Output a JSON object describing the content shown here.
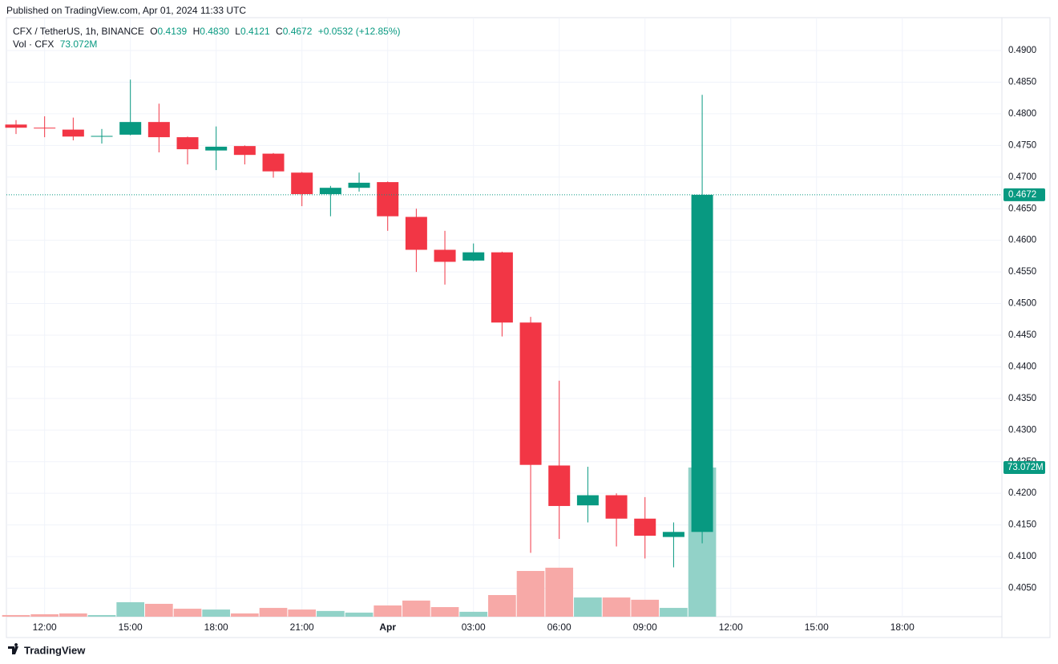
{
  "header": {
    "published": "Published on TradingView.com, Apr 01, 2024 11:33 UTC",
    "brand": "TradingView"
  },
  "chart_data": {
    "type": "candlestick",
    "symbol": "CFX / TetherUS, 1h, BINANCE",
    "legend": {
      "o_label": "O",
      "open": "0.4139",
      "h_label": "H",
      "high": "0.4830",
      "l_label": "L",
      "low": "0.4121",
      "c_label": "C",
      "close": "0.4672",
      "change": "+0.0532 (+12.85%)"
    },
    "volume_legend": {
      "name": "Vol · CFX",
      "value": "73.072M"
    },
    "categories": [
      null,
      "12:00",
      null,
      null,
      "15:00",
      null,
      null,
      "18:00",
      null,
      null,
      "21:00",
      null,
      null,
      "Apr",
      null,
      null,
      "03:00",
      null,
      null,
      "06:00",
      null,
      null,
      "09:00",
      null,
      null,
      "12:00",
      null,
      null,
      "15:00",
      null,
      null,
      "18:00",
      null,
      null,
      null
    ],
    "open": [
      0.4783,
      0.4778,
      0.4775,
      0.4764,
      0.4767,
      0.4787,
      0.4763,
      0.4742,
      0.4749,
      0.4737,
      0.4707,
      0.4673,
      0.4683,
      0.4692,
      0.4637,
      0.4585,
      0.4568,
      0.4581,
      0.447,
      0.4244,
      0.4181,
      0.4197,
      0.416,
      0.4131,
      0.4139,
      null,
      null,
      null,
      null,
      null,
      null,
      null,
      null,
      null,
      null
    ],
    "high": [
      0.479,
      0.4796,
      0.4794,
      0.4776,
      0.4854,
      0.4816,
      0.4764,
      0.478,
      0.475,
      0.4738,
      0.4708,
      0.4686,
      0.4707,
      0.4693,
      0.465,
      0.4615,
      0.4595,
      0.4582,
      0.4479,
      0.4378,
      0.4242,
      0.42,
      0.4194,
      0.4154,
      0.483,
      null,
      null,
      null,
      null,
      null,
      null,
      null,
      null,
      null,
      null
    ],
    "low": [
      0.4768,
      0.4763,
      0.4758,
      0.4753,
      0.4766,
      0.4739,
      0.472,
      0.4711,
      0.472,
      0.4699,
      0.4654,
      0.4638,
      0.4677,
      0.4615,
      0.455,
      0.453,
      0.4567,
      0.4448,
      0.4106,
      0.4128,
      0.4154,
      0.4116,
      0.4097,
      0.4083,
      0.4121,
      null,
      null,
      null,
      null,
      null,
      null,
      null,
      null,
      null,
      null
    ],
    "close": [
      0.4778,
      0.4777,
      0.4764,
      0.4765,
      0.4787,
      0.4763,
      0.4744,
      0.4748,
      0.4735,
      0.4709,
      0.4673,
      0.4683,
      0.4691,
      0.4638,
      0.4585,
      0.4566,
      0.4581,
      0.447,
      0.4245,
      0.418,
      0.4197,
      0.416,
      0.4133,
      0.4139,
      0.4672,
      null,
      null,
      null,
      null,
      null,
      null,
      null,
      null,
      null,
      null
    ],
    "volume": [
      0.8,
      1.2,
      1.6,
      0.8,
      7.1,
      6.3,
      3.9,
      3.5,
      1.6,
      4.3,
      3.5,
      2.8,
      2.0,
      5.5,
      7.9,
      4.7,
      2.4,
      10.6,
      22.4,
      24.0,
      9.4,
      9.4,
      8.3,
      4.3,
      73.072,
      null,
      null,
      null,
      null,
      null,
      null,
      null,
      null,
      null,
      null
    ],
    "ylim": [
      0.4005,
      0.4952
    ],
    "yticks": [
      {
        "value": 0.405,
        "label": "0.4050"
      },
      {
        "value": 0.41,
        "label": "0.4100"
      },
      {
        "value": 0.415,
        "label": "0.4150"
      },
      {
        "value": 0.42,
        "label": "0.4200"
      },
      {
        "value": 0.425,
        "label": "0.4250"
      },
      {
        "value": 0.43,
        "label": "0.4300"
      },
      {
        "value": 0.435,
        "label": "0.4350"
      },
      {
        "value": 0.44,
        "label": "0.4400"
      },
      {
        "value": 0.445,
        "label": "0.4450"
      },
      {
        "value": 0.45,
        "label": "0.4500"
      },
      {
        "value": 0.455,
        "label": "0.4550"
      },
      {
        "value": 0.46,
        "label": "0.4600"
      },
      {
        "value": 0.465,
        "label": "0.4650"
      },
      {
        "value": 0.47,
        "label": "0.4700"
      },
      {
        "value": 0.475,
        "label": "0.4750"
      },
      {
        "value": 0.48,
        "label": "0.4800"
      },
      {
        "value": 0.485,
        "label": "0.4850"
      },
      {
        "value": 0.49,
        "label": "0.4900"
      }
    ],
    "grid": true,
    "up_color": "#089981",
    "down_color": "#f23645",
    "volume_up_color": "#92d2c8",
    "volume_down_color": "#f7a9a7",
    "last_price_label": "0.4672",
    "volume_label": "73.072M"
  }
}
